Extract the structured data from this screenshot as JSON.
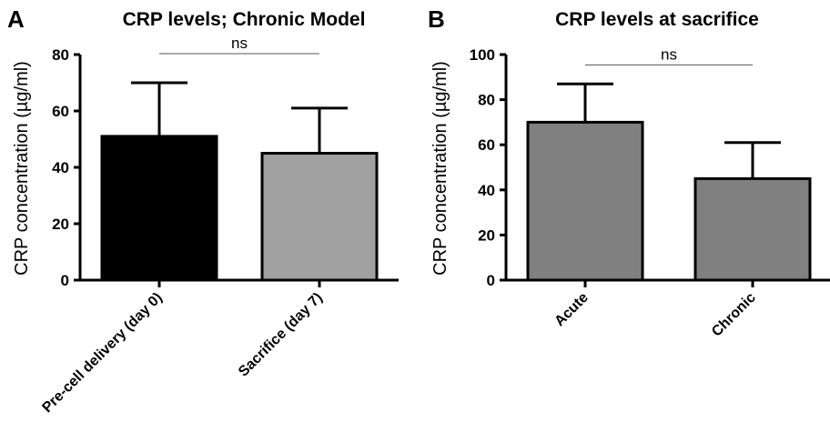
{
  "chart_data": [
    {
      "panel": "A",
      "type": "bar",
      "title": "CRP levels; Chronic Model",
      "ylabel": "CRP concentration (µg/ml)",
      "xlabel": "",
      "ylim": [
        0,
        80
      ],
      "yticks": [
        0,
        20,
        40,
        60,
        80
      ],
      "categories": [
        "Pre-cell delivery (day 0)",
        "Sacrifice (day 7)"
      ],
      "values": [
        51,
        45
      ],
      "errors": [
        19,
        16
      ],
      "colors": [
        "#000000",
        "#a0a0a0"
      ],
      "significance": {
        "label": "ns",
        "from": 0,
        "to": 1,
        "y": 80
      },
      "grid": false
    },
    {
      "panel": "B",
      "type": "bar",
      "title": "CRP levels at sacrifice",
      "ylabel": "CRP concentration (µg/ml)",
      "xlabel": "",
      "ylim": [
        0,
        100
      ],
      "yticks": [
        0,
        20,
        40,
        60,
        80,
        100
      ],
      "categories": [
        "Acute",
        "Chronic"
      ],
      "values": [
        70,
        45
      ],
      "errors": [
        17,
        16
      ],
      "colors": [
        "#808080",
        "#808080"
      ],
      "significance": {
        "label": "ns",
        "from": 0,
        "to": 1,
        "y": 95
      },
      "grid": false
    }
  ]
}
